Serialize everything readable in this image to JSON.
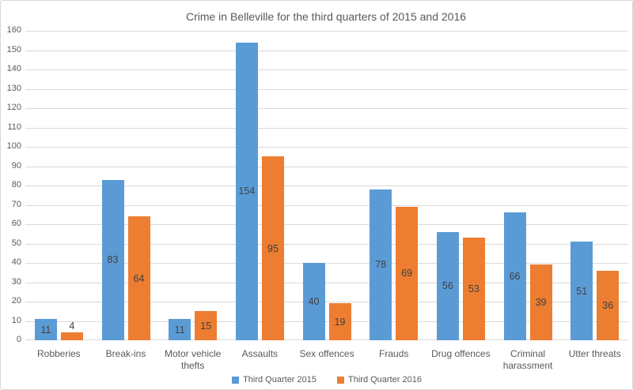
{
  "chart_data": {
    "type": "bar",
    "title": "Crime in Belleville for the third quarters of 2015 and 2016",
    "categories": [
      "Robberies",
      "Break-ins",
      "Motor vehicle thefts",
      "Assaults",
      "Sex offences",
      "Frauds",
      "Drug offences",
      "Criminal harassment",
      "Utter threats"
    ],
    "series": [
      {
        "name": "Third Quarter 2015",
        "color": "#5B9BD5",
        "values": [
          11,
          83,
          11,
          154,
          40,
          78,
          56,
          66,
          51
        ]
      },
      {
        "name": "Third Quarter 2016",
        "color": "#ED7D31",
        "values": [
          4,
          64,
          15,
          95,
          19,
          69,
          53,
          39,
          36
        ]
      }
    ],
    "ylim": [
      0,
      160
    ],
    "ytick_step": 10,
    "grid": true,
    "legend_position": "bottom",
    "data_labels": "center",
    "colors": {
      "grid": "#d9d9d9",
      "axis_text": "#595959",
      "title_text": "#595959",
      "data_label_text": "#404040",
      "border": "#d7d7d7"
    }
  }
}
